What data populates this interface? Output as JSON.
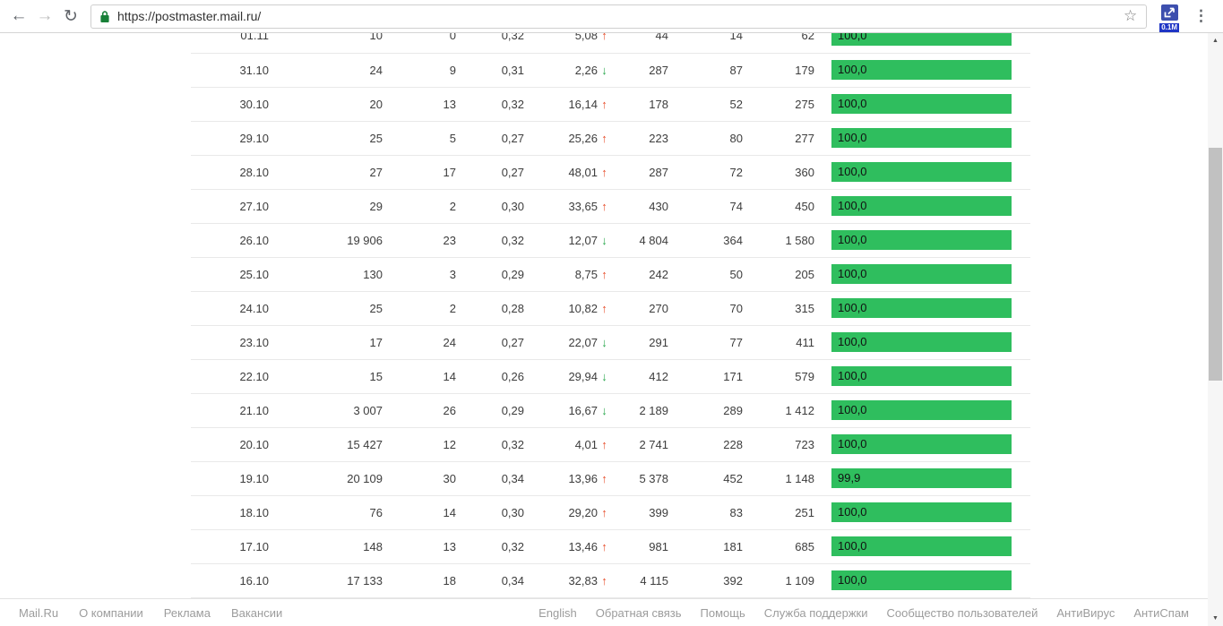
{
  "browser": {
    "url": "https://postmaster.mail.ru/",
    "extension_badge": "0.1M"
  },
  "icons": {
    "back": "←",
    "forward": "→",
    "refresh": "↻",
    "star": "☆",
    "menu": "⋮",
    "up_arrow": "↑",
    "down_arrow": "↓",
    "scroll_up": "▲",
    "scroll_down": "▼"
  },
  "colors": {
    "bar_green": "#2fbe5e",
    "trend_up": "#e8512f",
    "trend_down": "#2ba84e",
    "lock_green": "#188038"
  },
  "table": {
    "rows": [
      {
        "date": "01.11",
        "values": [
          "10",
          "0",
          "0,32"
        ],
        "percent": "5,08",
        "trend": "up",
        "values2": [
          "44",
          "14",
          "62"
        ],
        "rating": "100,0",
        "rating_value": 100
      },
      {
        "date": "31.10",
        "values": [
          "24",
          "9",
          "0,31"
        ],
        "percent": "2,26",
        "trend": "down",
        "values2": [
          "287",
          "87",
          "179"
        ],
        "rating": "100,0",
        "rating_value": 100
      },
      {
        "date": "30.10",
        "values": [
          "20",
          "13",
          "0,32"
        ],
        "percent": "16,14",
        "trend": "up",
        "values2": [
          "178",
          "52",
          "275"
        ],
        "rating": "100,0",
        "rating_value": 100
      },
      {
        "date": "29.10",
        "values": [
          "25",
          "5",
          "0,27"
        ],
        "percent": "25,26",
        "trend": "up",
        "values2": [
          "223",
          "80",
          "277"
        ],
        "rating": "100,0",
        "rating_value": 100
      },
      {
        "date": "28.10",
        "values": [
          "27",
          "17",
          "0,27"
        ],
        "percent": "48,01",
        "trend": "up",
        "values2": [
          "287",
          "72",
          "360"
        ],
        "rating": "100,0",
        "rating_value": 100
      },
      {
        "date": "27.10",
        "values": [
          "29",
          "2",
          "0,30"
        ],
        "percent": "33,65",
        "trend": "up",
        "values2": [
          "430",
          "74",
          "450"
        ],
        "rating": "100,0",
        "rating_value": 100
      },
      {
        "date": "26.10",
        "values": [
          "19 906",
          "23",
          "0,32"
        ],
        "percent": "12,07",
        "trend": "down",
        "values2": [
          "4 804",
          "364",
          "1 580"
        ],
        "rating": "100,0",
        "rating_value": 100
      },
      {
        "date": "25.10",
        "values": [
          "130",
          "3",
          "0,29"
        ],
        "percent": "8,75",
        "trend": "up",
        "values2": [
          "242",
          "50",
          "205"
        ],
        "rating": "100,0",
        "rating_value": 100
      },
      {
        "date": "24.10",
        "values": [
          "25",
          "2",
          "0,28"
        ],
        "percent": "10,82",
        "trend": "up",
        "values2": [
          "270",
          "70",
          "315"
        ],
        "rating": "100,0",
        "rating_value": 100
      },
      {
        "date": "23.10",
        "values": [
          "17",
          "24",
          "0,27"
        ],
        "percent": "22,07",
        "trend": "down",
        "values2": [
          "291",
          "77",
          "411"
        ],
        "rating": "100,0",
        "rating_value": 100
      },
      {
        "date": "22.10",
        "values": [
          "15",
          "14",
          "0,26"
        ],
        "percent": "29,94",
        "trend": "down",
        "values2": [
          "412",
          "171",
          "579"
        ],
        "rating": "100,0",
        "rating_value": 100
      },
      {
        "date": "21.10",
        "values": [
          "3 007",
          "26",
          "0,29"
        ],
        "percent": "16,67",
        "trend": "down",
        "values2": [
          "2 189",
          "289",
          "1 412"
        ],
        "rating": "100,0",
        "rating_value": 100
      },
      {
        "date": "20.10",
        "values": [
          "15 427",
          "12",
          "0,32"
        ],
        "percent": "4,01",
        "trend": "up",
        "values2": [
          "2 741",
          "228",
          "723"
        ],
        "rating": "100,0",
        "rating_value": 100
      },
      {
        "date": "19.10",
        "values": [
          "20 109",
          "30",
          "0,34"
        ],
        "percent": "13,96",
        "trend": "up",
        "values2": [
          "5 378",
          "452",
          "1 148"
        ],
        "rating": "99,9",
        "rating_value": 99.9
      },
      {
        "date": "18.10",
        "values": [
          "76",
          "14",
          "0,30"
        ],
        "percent": "29,20",
        "trend": "up",
        "values2": [
          "399",
          "83",
          "251"
        ],
        "rating": "100,0",
        "rating_value": 100
      },
      {
        "date": "17.10",
        "values": [
          "148",
          "13",
          "0,32"
        ],
        "percent": "13,46",
        "trend": "up",
        "values2": [
          "981",
          "181",
          "685"
        ],
        "rating": "100,0",
        "rating_value": 100
      },
      {
        "date": "16.10",
        "values": [
          "17 133",
          "18",
          "0,34"
        ],
        "percent": "32,83",
        "trend": "up",
        "values2": [
          "4 115",
          "392",
          "1 109"
        ],
        "rating": "100,0",
        "rating_value": 100
      }
    ]
  },
  "footer": {
    "left_links": [
      "Mail.Ru",
      "О компании",
      "Реклама",
      "Вакансии"
    ],
    "right_links": [
      "English",
      "Обратная связь",
      "Помощь",
      "Служба поддержки",
      "Сообщество пользователей",
      "АнтиВирус",
      "АнтиСпам"
    ]
  }
}
